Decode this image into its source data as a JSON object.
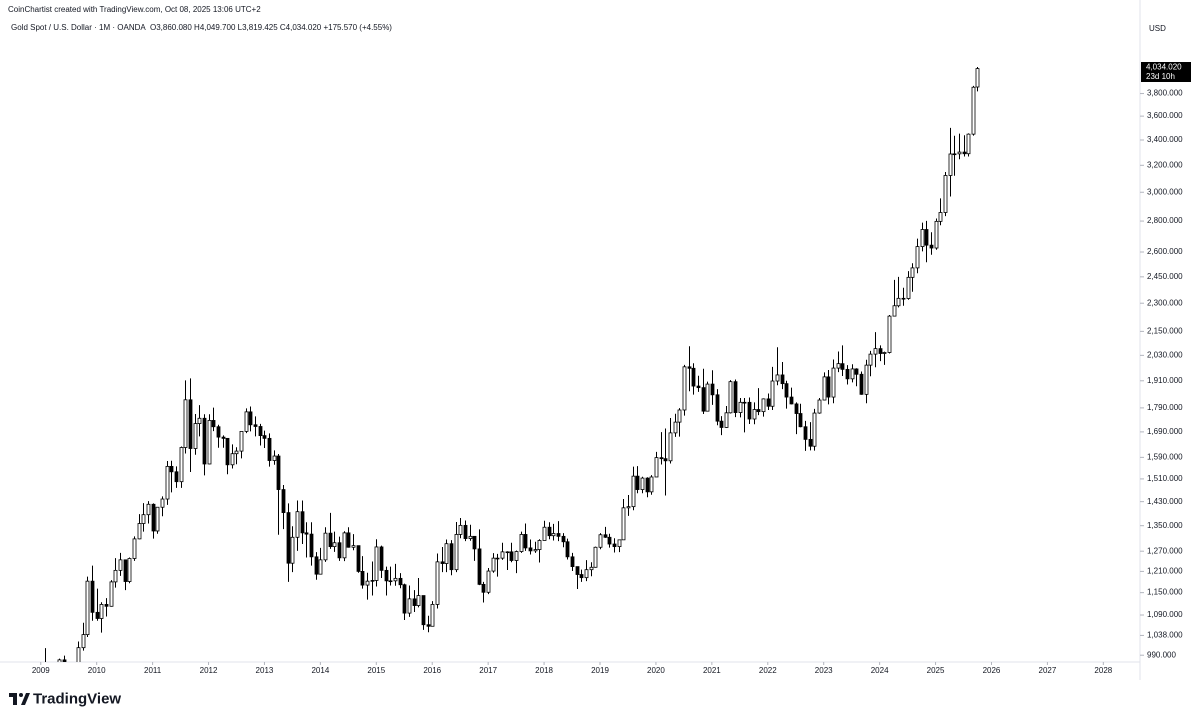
{
  "chart_data": {
    "type": "candlestick",
    "credit": "CoinChartist created with TradingView.com, Oct 08, 2025 13:06 UTC+2",
    "symbol": "Gold Spot / U.S. Dollar · 1M · OANDA",
    "ohlc_legend": "O3,860.080 H4,049.700 L3,819.425 C4,034.020 +175.570 (+4.55%)",
    "currency": "USD",
    "last_price_label": "4,034.020",
    "countdown": "23d 10h",
    "logo": "TradingView",
    "log_scale": true,
    "up_color": "#ffffff",
    "down_color": "#000000",
    "border_color": "#000000",
    "xlim": [
      2008.45,
      2028.62
    ],
    "xticks": [
      2009,
      2010,
      2011,
      2012,
      2013,
      2014,
      2015,
      2016,
      2017,
      2018,
      2019,
      2020,
      2021,
      2022,
      2023,
      2024,
      2025,
      2026,
      2027,
      2028
    ],
    "ylim": [
      974,
      4320
    ],
    "yticks": [
      {
        "value": 990,
        "label": "990.000"
      },
      {
        "value": 1038,
        "label": "1,038.000"
      },
      {
        "value": 1090,
        "label": "1,090.000"
      },
      {
        "value": 1150,
        "label": "1,150.000"
      },
      {
        "value": 1210,
        "label": "1,210.000"
      },
      {
        "value": 1270,
        "label": "1,270.000"
      },
      {
        "value": 1350,
        "label": "1,350.000"
      },
      {
        "value": 1430,
        "label": "1,430.000"
      },
      {
        "value": 1510,
        "label": "1,510.000"
      },
      {
        "value": 1590,
        "label": "1,590.000"
      },
      {
        "value": 1690,
        "label": "1,690.000"
      },
      {
        "value": 1790,
        "label": "1,790.000"
      },
      {
        "value": 1910,
        "label": "1,910.000"
      },
      {
        "value": 2030,
        "label": "2,030.000"
      },
      {
        "value": 2150,
        "label": "2,150.000"
      },
      {
        "value": 2300,
        "label": "2,300.000"
      },
      {
        "value": 2450,
        "label": "2,450.000"
      },
      {
        "value": 2600,
        "label": "2,600.000"
      },
      {
        "value": 2800,
        "label": "2,800.000"
      },
      {
        "value": 3000,
        "label": "3,000.000"
      },
      {
        "value": 3200,
        "label": "3,200.000"
      },
      {
        "value": 3400,
        "label": "3,400.000"
      },
      {
        "value": 3600,
        "label": "3,600.000"
      },
      {
        "value": 3800,
        "label": "3,800.000"
      }
    ],
    "x": [
      "2009-01",
      "2009-02",
      "2009-03",
      "2009-04",
      "2009-05",
      "2009-06",
      "2009-07",
      "2009-08",
      "2009-09",
      "2009-10",
      "2009-11",
      "2009-12",
      "2010-01",
      "2010-02",
      "2010-03",
      "2010-04",
      "2010-05",
      "2010-06",
      "2010-07",
      "2010-08",
      "2010-09",
      "2010-10",
      "2010-11",
      "2010-12",
      "2011-01",
      "2011-02",
      "2011-03",
      "2011-04",
      "2011-05",
      "2011-06",
      "2011-07",
      "2011-08",
      "2011-09",
      "2011-10",
      "2011-11",
      "2011-12",
      "2012-01",
      "2012-02",
      "2012-03",
      "2012-04",
      "2012-05",
      "2012-06",
      "2012-07",
      "2012-08",
      "2012-09",
      "2012-10",
      "2012-11",
      "2012-12",
      "2013-01",
      "2013-02",
      "2013-03",
      "2013-04",
      "2013-05",
      "2013-06",
      "2013-07",
      "2013-08",
      "2013-09",
      "2013-10",
      "2013-11",
      "2013-12",
      "2014-01",
      "2014-02",
      "2014-03",
      "2014-04",
      "2014-05",
      "2014-06",
      "2014-07",
      "2014-08",
      "2014-09",
      "2014-10",
      "2014-11",
      "2014-12",
      "2015-01",
      "2015-02",
      "2015-03",
      "2015-04",
      "2015-05",
      "2015-06",
      "2015-07",
      "2015-08",
      "2015-09",
      "2015-10",
      "2015-11",
      "2015-12",
      "2016-01",
      "2016-02",
      "2016-03",
      "2016-04",
      "2016-05",
      "2016-06",
      "2016-07",
      "2016-08",
      "2016-09",
      "2016-10",
      "2016-11",
      "2016-12",
      "2017-01",
      "2017-02",
      "2017-03",
      "2017-04",
      "2017-05",
      "2017-06",
      "2017-07",
      "2017-08",
      "2017-09",
      "2017-10",
      "2017-11",
      "2017-12",
      "2018-01",
      "2018-02",
      "2018-03",
      "2018-04",
      "2018-05",
      "2018-06",
      "2018-07",
      "2018-08",
      "2018-09",
      "2018-10",
      "2018-11",
      "2018-12",
      "2019-01",
      "2019-02",
      "2019-03",
      "2019-04",
      "2019-05",
      "2019-06",
      "2019-07",
      "2019-08",
      "2019-09",
      "2019-10",
      "2019-11",
      "2019-12",
      "2020-01",
      "2020-02",
      "2020-03",
      "2020-04",
      "2020-05",
      "2020-06",
      "2020-07",
      "2020-08",
      "2020-09",
      "2020-10",
      "2020-11",
      "2020-12",
      "2021-01",
      "2021-02",
      "2021-03",
      "2021-04",
      "2021-05",
      "2021-06",
      "2021-07",
      "2021-08",
      "2021-09",
      "2021-10",
      "2021-11",
      "2021-12",
      "2022-01",
      "2022-02",
      "2022-03",
      "2022-04",
      "2022-05",
      "2022-06",
      "2022-07",
      "2022-08",
      "2022-09",
      "2022-10",
      "2022-11",
      "2022-12",
      "2023-01",
      "2023-02",
      "2023-03",
      "2023-04",
      "2023-05",
      "2023-06",
      "2023-07",
      "2023-08",
      "2023-09",
      "2023-10",
      "2023-11",
      "2023-12",
      "2024-01",
      "2024-02",
      "2024-03",
      "2024-04",
      "2024-05",
      "2024-06",
      "2024-07",
      "2024-08",
      "2024-09",
      "2024-10",
      "2024-11",
      "2024-12",
      "2025-01",
      "2025-02",
      "2025-03",
      "2025-04",
      "2025-05",
      "2025-06",
      "2025-07",
      "2025-08",
      "2025-09",
      "2025-10"
    ],
    "open": [
      884,
      928,
      942,
      916,
      883,
      979,
      927,
      955,
      955,
      1008,
      1040,
      1182,
      1097,
      1081,
      1118,
      1113,
      1180,
      1213,
      1244,
      1181,
      1248,
      1308,
      1357,
      1386,
      1421,
      1333,
      1411,
      1439,
      1556,
      1536,
      1500,
      1628,
      1825,
      1624,
      1724,
      1746,
      1565,
      1737,
      1711,
      1669,
      1664,
      1562,
      1604,
      1614,
      1692,
      1773,
      1719,
      1712,
      1675,
      1664,
      1578,
      1595,
      1472,
      1393,
      1234,
      1313,
      1396,
      1327,
      1323,
      1253,
      1202,
      1244,
      1326,
      1284,
      1296,
      1250,
      1327,
      1282,
      1287,
      1210,
      1171,
      1182,
      1184,
      1283,
      1213,
      1183,
      1183,
      1190,
      1172,
      1095,
      1133,
      1115,
      1142,
      1065,
      1061,
      1118,
      1238,
      1233,
      1293,
      1215,
      1322,
      1351,
      1309,
      1316,
      1277,
      1173,
      1151,
      1211,
      1249,
      1249,
      1268,
      1268,
      1242,
      1269,
      1322,
      1280,
      1271,
      1275,
      1303,
      1345,
      1318,
      1325,
      1316,
      1299,
      1253,
      1224,
      1201,
      1192,
      1215,
      1222,
      1282,
      1321,
      1313,
      1292,
      1284,
      1305,
      1409,
      1413,
      1520,
      1472,
      1513,
      1464,
      1517,
      1589,
      1585,
      1577,
      1686,
      1730,
      1781,
      1975,
      1968,
      1886,
      1879,
      1776,
      1895,
      1847,
      1734,
      1708,
      1769,
      1906,
      1770,
      1814,
      1814,
      1743,
      1783,
      1774,
      1829,
      1797,
      1909,
      1937,
      1897,
      1837,
      1807,
      1766,
      1711,
      1660,
      1633,
      1768,
      1824,
      1928,
      1837,
      1969,
      1990,
      1963,
      1919,
      1965,
      1940,
      1849,
      1983,
      2036,
      2063,
      2039,
      2044,
      2230,
      2286,
      2327,
      2326,
      2447,
      2503,
      2634,
      2744,
      2643,
      2625,
      2798,
      2858,
      3123,
      3288,
      3289,
      3303,
      3290,
      3448,
      3860.08
    ],
    "high": [
      932,
      1007,
      961,
      918,
      982,
      989,
      960,
      965,
      1023,
      1070,
      1195,
      1227,
      1161,
      1124,
      1135,
      1185,
      1249,
      1265,
      1245,
      1251,
      1316,
      1388,
      1425,
      1432,
      1424,
      1412,
      1448,
      1576,
      1577,
      1556,
      1632,
      1912,
      1921,
      1764,
      1802,
      1763,
      1763,
      1791,
      1719,
      1676,
      1665,
      1640,
      1629,
      1692,
      1788,
      1796,
      1754,
      1723,
      1695,
      1684,
      1617,
      1603,
      1488,
      1424,
      1348,
      1434,
      1434,
      1361,
      1361,
      1267,
      1280,
      1345,
      1392,
      1331,
      1315,
      1332,
      1345,
      1323,
      1287,
      1255,
      1206,
      1239,
      1307,
      1287,
      1224,
      1224,
      1232,
      1205,
      1175,
      1170,
      1157,
      1191,
      1142,
      1088,
      1127,
      1263,
      1283,
      1306,
      1304,
      1362,
      1375,
      1367,
      1353,
      1317,
      1338,
      1180,
      1220,
      1264,
      1262,
      1296,
      1270,
      1296,
      1272,
      1331,
      1357,
      1306,
      1299,
      1307,
      1366,
      1361,
      1356,
      1365,
      1326,
      1309,
      1265,
      1224,
      1215,
      1243,
      1237,
      1284,
      1326,
      1346,
      1324,
      1310,
      1306,
      1439,
      1453,
      1555,
      1557,
      1518,
      1516,
      1524,
      1611,
      1689,
      1704,
      1747,
      1765,
      1789,
      1984,
      2075,
      1992,
      1933,
      1966,
      1906,
      1959,
      1872,
      1755,
      1798,
      1913,
      1916,
      1833,
      1833,
      1835,
      1814,
      1877,
      1831,
      1853,
      1975,
      2070,
      1998,
      1910,
      1879,
      1814,
      1808,
      1735,
      1730,
      1786,
      1833,
      1949,
      1960,
      2010,
      2049,
      2079,
      1983,
      1987,
      1968,
      1953,
      2009,
      2052,
      2146,
      2079,
      2048,
      2236,
      2432,
      2450,
      2387,
      2484,
      2531,
      2685,
      2790,
      2801,
      2726,
      2817,
      2956,
      3149,
      3500,
      3435,
      3452,
      3439,
      3454,
      3871,
      4049.7
    ],
    "low": [
      802,
      889,
      864,
      866,
      877,
      916,
      905,
      932,
      935,
      1001,
      1034,
      1075,
      1075,
      1045,
      1086,
      1112,
      1164,
      1197,
      1157,
      1176,
      1241,
      1307,
      1331,
      1357,
      1309,
      1324,
      1381,
      1419,
      1462,
      1478,
      1478,
      1605,
      1535,
      1600,
      1672,
      1523,
      1564,
      1693,
      1627,
      1627,
      1527,
      1548,
      1564,
      1586,
      1685,
      1692,
      1672,
      1636,
      1626,
      1555,
      1562,
      1321,
      1339,
      1180,
      1208,
      1271,
      1292,
      1251,
      1227,
      1186,
      1202,
      1238,
      1277,
      1268,
      1241,
      1240,
      1281,
      1273,
      1206,
      1161,
      1131,
      1142,
      1167,
      1191,
      1142,
      1170,
      1169,
      1162,
      1077,
      1085,
      1098,
      1110,
      1052,
      1046,
      1061,
      1107,
      1208,
      1208,
      1199,
      1208,
      1310,
      1301,
      1302,
      1241,
      1171,
      1123,
      1146,
      1206,
      1195,
      1244,
      1214,
      1237,
      1205,
      1265,
      1271,
      1260,
      1265,
      1236,
      1303,
      1307,
      1303,
      1301,
      1282,
      1245,
      1211,
      1160,
      1180,
      1182,
      1196,
      1221,
      1276,
      1311,
      1281,
      1266,
      1267,
      1305,
      1382,
      1401,
      1459,
      1459,
      1445,
      1454,
      1517,
      1563,
      1451,
      1567,
      1670,
      1671,
      1757,
      1863,
      1848,
      1860,
      1764,
      1776,
      1803,
      1717,
      1677,
      1706,
      1766,
      1751,
      1750,
      1688,
      1722,
      1721,
      1759,
      1753,
      1781,
      1781,
      1890,
      1872,
      1787,
      1805,
      1681,
      1709,
      1615,
      1617,
      1616,
      1765,
      1823,
      1805,
      1810,
      1950,
      1932,
      1893,
      1903,
      1885,
      1847,
      1810,
      1931,
      1973,
      2002,
      1984,
      2039,
      2229,
      2277,
      2286,
      2319,
      2364,
      2471,
      2604,
      2537,
      2583,
      2614,
      2772,
      2833,
      2970,
      3121,
      3247,
      3268,
      3268,
      3436,
      3819.425
    ],
    "close": [
      928,
      942,
      916,
      883,
      979,
      927,
      955,
      955,
      1008,
      1040,
      1182,
      1097,
      1081,
      1118,
      1113,
      1180,
      1213,
      1244,
      1181,
      1248,
      1308,
      1357,
      1386,
      1421,
      1333,
      1411,
      1439,
      1556,
      1536,
      1500,
      1628,
      1825,
      1624,
      1724,
      1746,
      1565,
      1737,
      1711,
      1669,
      1664,
      1562,
      1604,
      1614,
      1692,
      1773,
      1719,
      1712,
      1675,
      1664,
      1578,
      1595,
      1472,
      1393,
      1234,
      1313,
      1396,
      1327,
      1323,
      1253,
      1202,
      1244,
      1326,
      1284,
      1296,
      1250,
      1327,
      1282,
      1287,
      1210,
      1171,
      1182,
      1184,
      1283,
      1213,
      1183,
      1183,
      1190,
      1172,
      1095,
      1133,
      1115,
      1142,
      1065,
      1061,
      1118,
      1238,
      1233,
      1293,
      1215,
      1322,
      1351,
      1309,
      1316,
      1277,
      1173,
      1151,
      1211,
      1249,
      1249,
      1268,
      1268,
      1242,
      1269,
      1322,
      1280,
      1271,
      1275,
      1303,
      1345,
      1318,
      1325,
      1316,
      1299,
      1253,
      1224,
      1201,
      1192,
      1215,
      1222,
      1282,
      1321,
      1313,
      1292,
      1284,
      1305,
      1409,
      1413,
      1520,
      1472,
      1513,
      1464,
      1517,
      1589,
      1585,
      1577,
      1686,
      1730,
      1781,
      1975,
      1968,
      1886,
      1879,
      1776,
      1895,
      1847,
      1734,
      1708,
      1769,
      1906,
      1770,
      1814,
      1814,
      1743,
      1783,
      1774,
      1829,
      1797,
      1909,
      1937,
      1897,
      1837,
      1807,
      1766,
      1711,
      1660,
      1633,
      1768,
      1824,
      1928,
      1837,
      1969,
      1990,
      1963,
      1919,
      1965,
      1940,
      1849,
      1983,
      2036,
      2063,
      2039,
      2044,
      2230,
      2286,
      2327,
      2326,
      2447,
      2503,
      2634,
      2744,
      2643,
      2625,
      2798,
      2858,
      3123,
      3288,
      3289,
      3303,
      3290,
      3448,
      3858,
      4034.02
    ]
  }
}
